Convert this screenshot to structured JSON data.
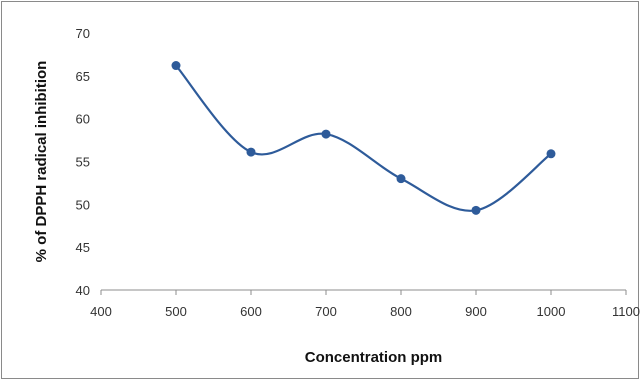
{
  "chart_data": {
    "type": "line",
    "title": "",
    "xlabel": "Concentration ppm",
    "ylabel": "% of DPPH radical inhibition",
    "xlim": [
      400,
      1100
    ],
    "ylim": [
      40,
      70
    ],
    "x_ticks": [
      400,
      500,
      600,
      700,
      800,
      900,
      1000,
      1100
    ],
    "y_ticks": [
      40,
      45,
      50,
      55,
      60,
      65,
      70
    ],
    "grid": false,
    "legend": "none",
    "smooth": true,
    "series": [
      {
        "x": [
          500,
          600,
          700,
          800,
          900,
          1000
        ],
        "values": [
          66.2,
          56.1,
          58.2,
          53.0,
          49.3,
          55.9
        ],
        "color": "#2e5b9a",
        "marker": "circle"
      }
    ]
  }
}
